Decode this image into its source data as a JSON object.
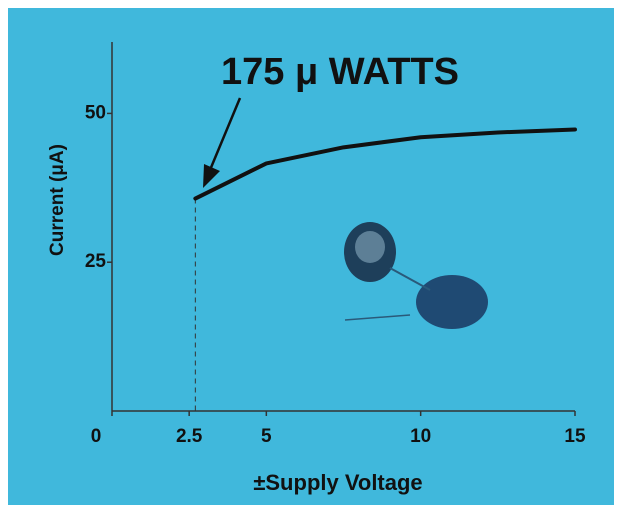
{
  "chart_data": {
    "type": "line",
    "annotation": "175 μ WATTS",
    "y_label": "Current (μA)",
    "x_label": "±Supply Voltage",
    "x": [
      2.7,
      5,
      7.5,
      10,
      12.5,
      15
    ],
    "series": [
      {
        "color": "#111111",
        "values": [
          35.7,
          41.6,
          44.3,
          46,
          46.8,
          47.3
        ]
      }
    ],
    "xlim": [
      0,
      15
    ],
    "ylim": [
      0,
      62
    ],
    "xticks": [
      0,
      2.5,
      5,
      10,
      15
    ],
    "yticks": [
      25,
      50
    ],
    "background": "#40b8dc"
  }
}
